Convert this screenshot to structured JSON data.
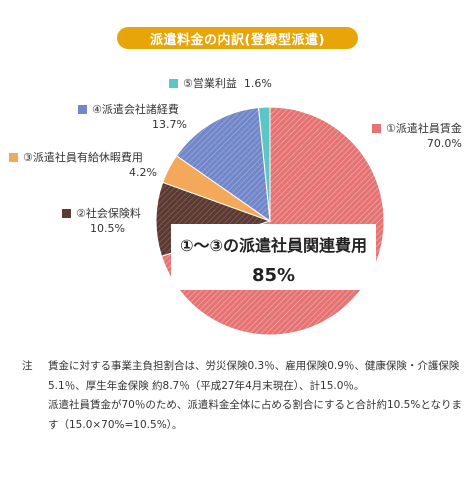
{
  "colors": {
    "title_bg": "#e8a50a",
    "slice1": "#e57373",
    "slice2": "#5b3a33",
    "slice3": "#f4a85a",
    "slice4": "#7287c9",
    "slice5": "#5cc5c5"
  },
  "chart_data": {
    "type": "pie",
    "title": "派遣料金の内訳(登録型派遣)",
    "slices": [
      {
        "label": "①派遣社員賃金",
        "value": 70.0,
        "display": "70.0%"
      },
      {
        "label": "②社会保険料",
        "value": 10.5,
        "display": "10.5%"
      },
      {
        "label": "③派遣社員有給休暇費用",
        "value": 4.2,
        "display": "4.2%"
      },
      {
        "label": "④派遣会社諸経費",
        "value": 13.7,
        "display": "13.7%"
      },
      {
        "label": "⑤営業利益",
        "value": 1.6,
        "display": "1.6%"
      }
    ],
    "legend_placement": "around-pie",
    "callout": {
      "label": "①～③の派遣社員関連費用",
      "value": "85%"
    }
  },
  "note": {
    "mark": "注",
    "para1": "賃金に対する事業主負担割合は、労災保険0.3％、雇用保険0.9％、健康保険・介護保険5.1％、厚生年金保険 約8.7％（平成27年4月末現在）、計15.0％。",
    "para2": "派遣社員賃金が70％のため、派遣料金全体に占める割合にすると合計約10.5%となります（15.0×70%=10.5%）。"
  }
}
